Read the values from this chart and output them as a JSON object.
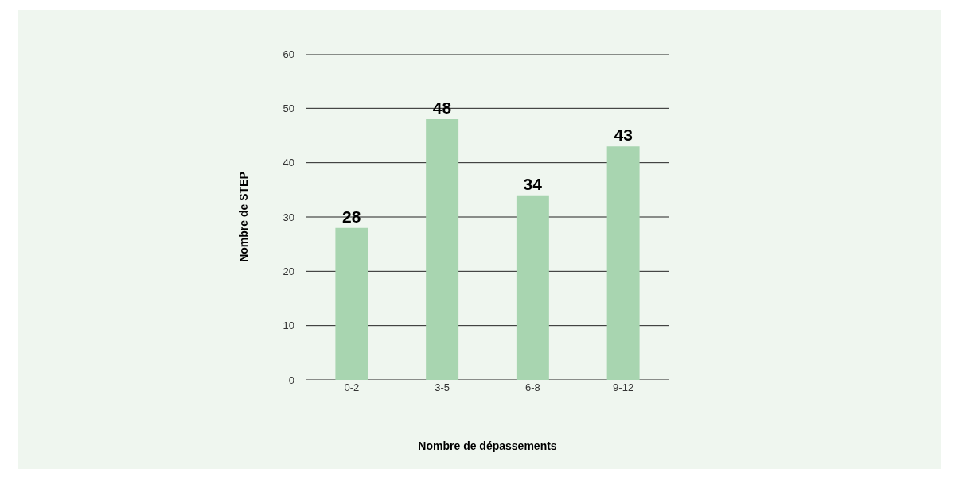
{
  "chart_data": {
    "type": "bar",
    "xlabel": "Nombre de dépassements",
    "ylabel": "Nombre de STEP",
    "categories": [
      "0-2",
      "3-5",
      "6-8",
      "9-12"
    ],
    "values": [
      28,
      48,
      34,
      43
    ],
    "color": "#a8d5b0",
    "ylim": [
      0,
      60
    ],
    "yticks": [
      0,
      10,
      20,
      30,
      40,
      50,
      60
    ],
    "grid": "y",
    "data_labels": true
  }
}
